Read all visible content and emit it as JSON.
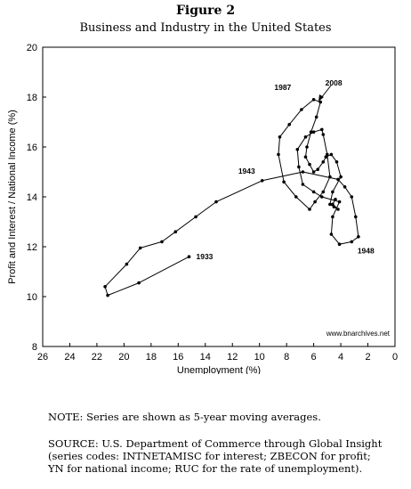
{
  "figure": {
    "label": "Figure 2",
    "title": "Business and Industry in the United States"
  },
  "chart_data": {
    "type": "line",
    "xlabel": "Unemployment (%)",
    "ylabel": "Profit and Interest / National Income (%)",
    "xlim": [
      26,
      0
    ],
    "ylim": [
      8,
      20
    ],
    "x_reversed": true,
    "x_ticks": [
      "26",
      "24",
      "22",
      "20",
      "18",
      "16",
      "14",
      "12",
      "10",
      "8",
      "6",
      "4",
      "2",
      "0"
    ],
    "y_ticks": [
      "8",
      "10",
      "12",
      "14",
      "16",
      "18",
      "20"
    ],
    "grid": false,
    "legend": "none",
    "series": [
      {
        "color": "#000000",
        "x": [
          15.2,
          18.9,
          21.2,
          21.4,
          19.8,
          18.8,
          17.2,
          16.2,
          14.7,
          13.2,
          9.8,
          6.8,
          4.2,
          3.7,
          3.2,
          2.9,
          2.7,
          3.2,
          4.1,
          4.7,
          4.6,
          4.1,
          5.4,
          6.0,
          6.8,
          7.1,
          7.2,
          6.6,
          6.0,
          5.4,
          5.3,
          5.0,
          4.8,
          5.3,
          5.9,
          6.3,
          7.3,
          8.2,
          8.6,
          8.5,
          7.8,
          6.9,
          6.0,
          5.5,
          5.8,
          6.2,
          6.5,
          6.6,
          6.3,
          6.0,
          5.7,
          5.3,
          5.1,
          4.7,
          4.3,
          4.0,
          4.6,
          4.8,
          4.5,
          4.2,
          4.6,
          4.4
        ],
        "y": [
          11.6,
          10.55,
          10.05,
          10.4,
          11.3,
          11.95,
          12.2,
          12.6,
          13.2,
          13.8,
          14.65,
          15.0,
          14.7,
          14.4,
          14.0,
          13.2,
          12.4,
          12.2,
          12.1,
          12.5,
          13.2,
          13.8,
          14.0,
          14.2,
          14.5,
          15.2,
          15.9,
          16.4,
          16.6,
          16.7,
          16.5,
          15.7,
          14.8,
          14.2,
          13.8,
          13.5,
          14.0,
          14.6,
          15.7,
          16.4,
          16.9,
          17.5,
          17.9,
          17.8,
          17.2,
          16.6,
          16.0,
          15.6,
          15.3,
          15.0,
          15.1,
          15.4,
          15.6,
          15.7,
          15.4,
          14.8,
          14.2,
          13.7,
          13.6,
          13.5,
          13.7,
          13.9
        ]
      }
    ],
    "annotations": [
      {
        "text": "1933",
        "x": 15.2,
        "y": 11.6
      },
      {
        "text": "1943",
        "x": 9.8,
        "y": 14.65
      },
      {
        "text": "1948",
        "x": 2.9,
        "y": 12.3
      },
      {
        "text": "1987",
        "x": 7.4,
        "y": 18.0
      },
      {
        "text": "2008",
        "x": 5.8,
        "y": 17.9
      }
    ],
    "watermark": "www.bnarchives.net"
  },
  "note": "NOTE: Series are shown as 5-year moving averages.",
  "source": {
    "lines": [
      "SOURCE: U.S. Department of Commerce through Global Insight",
      "(series codes: INTNETAMISC for interest; ZBECON for profit;",
      "YN for national income; RUC for the rate of unemployment)."
    ]
  }
}
